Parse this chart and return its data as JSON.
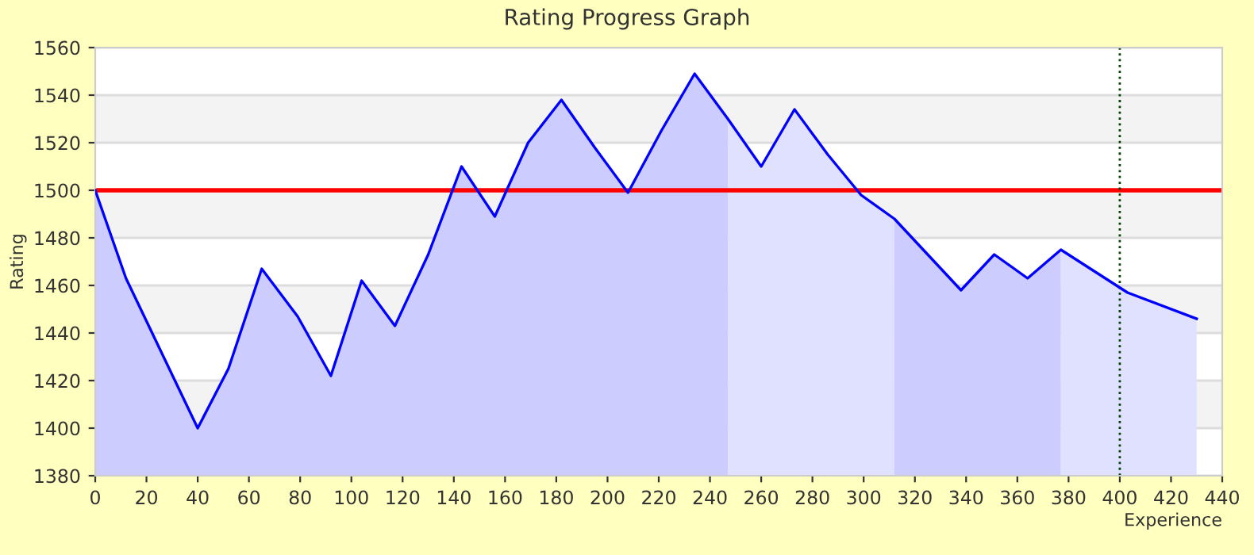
{
  "chart_data": {
    "type": "line",
    "title": "Rating Progress Graph",
    "xlabel": "Experience",
    "ylabel": "Rating",
    "xlim": [
      0,
      440
    ],
    "xticks": [
      0,
      20,
      40,
      60,
      80,
      100,
      120,
      140,
      160,
      180,
      200,
      220,
      240,
      260,
      280,
      300,
      320,
      340,
      360,
      380,
      400,
      420,
      440
    ],
    "ylim": [
      1380,
      1560
    ],
    "yticks": [
      1380,
      1400,
      1420,
      1440,
      1460,
      1480,
      1500,
      1520,
      1540,
      1560
    ],
    "grid": "y",
    "legend": false,
    "marker": "none",
    "line_style": "solid",
    "series": [
      {
        "type": "area",
        "color": "#ccccff",
        "x": [
          0,
          12,
          40,
          52,
          65,
          79,
          92,
          104,
          117,
          130,
          143,
          156,
          169,
          182,
          195,
          208,
          221,
          234,
          247
        ],
        "values": [
          1500,
          1463,
          1400,
          1425,
          1467,
          1447,
          1422,
          1462,
          1443,
          1473,
          1510,
          1489,
          1520,
          1538,
          1518,
          1499,
          1525,
          1549,
          1530
        ]
      },
      {
        "type": "area",
        "color": "#e0e0ff",
        "x": [
          247,
          260,
          273,
          286,
          299,
          312
        ],
        "values": [
          1530,
          1510,
          1534,
          1515,
          1498,
          1488
        ]
      },
      {
        "type": "area",
        "color": "#ccccff",
        "x": [
          312,
          338,
          351,
          364,
          377
        ],
        "values": [
          1488,
          1458,
          1473,
          1463,
          1475
        ]
      },
      {
        "type": "area",
        "color": "#e0e0ff",
        "x": [
          377,
          403,
          430
        ],
        "values": [
          1475,
          1457,
          1446
        ]
      },
      {
        "color": "#0000ff",
        "x": [
          0,
          12,
          40,
          52,
          65,
          79,
          92,
          104,
          117,
          130,
          143,
          156,
          169,
          182,
          195,
          208,
          221,
          234,
          247,
          260,
          273,
          286,
          299,
          312,
          338,
          351,
          364,
          377,
          403,
          430
        ],
        "values": [
          1500,
          1463,
          1400,
          1425,
          1467,
          1447,
          1422,
          1462,
          1443,
          1473,
          1510,
          1489,
          1520,
          1538,
          1518,
          1499,
          1525,
          1549,
          1530,
          1510,
          1534,
          1515,
          1498,
          1488,
          1458,
          1473,
          1463,
          1475,
          1457,
          1446
        ]
      }
    ],
    "ref_lines": [
      {
        "axis": "y",
        "value": 1500,
        "color": "#ff0000",
        "line_style": "solid"
      },
      {
        "axis": "x",
        "value": 400,
        "color": "#004400",
        "line_style": "dotted"
      }
    ]
  }
}
